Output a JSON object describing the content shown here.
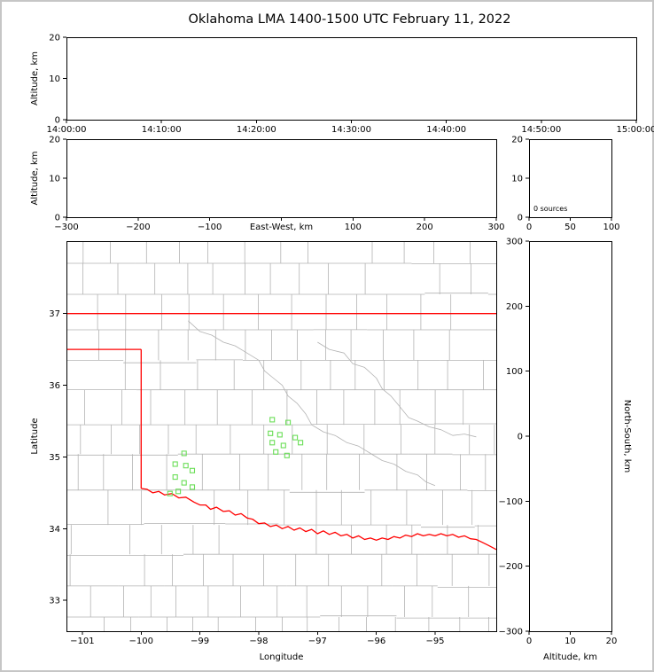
{
  "title": "Oklahoma LMA 1400-1500 UTC February 11, 2022",
  "colors": {
    "background": "#ffffff",
    "frame_border": "#c6c6c6",
    "axis": "#000000",
    "county_line": "#b3b3b3",
    "state_border": "#ff0000",
    "station_marker": "#6ade57",
    "text": "#000000"
  },
  "chart_data": {
    "type": "scatter",
    "title": "Oklahoma LMA 1400-1500 UTC February 11, 2022",
    "legend": "none",
    "grid": "off",
    "panels": {
      "time_height": {
        "description": "altitude vs time, no sources plotted",
        "ylabel": "Altitude, km",
        "ylim": [
          0,
          20
        ],
        "yticks": [
          0,
          10,
          20
        ],
        "ytick_labels": [
          "0",
          "10",
          "20"
        ],
        "xtick_labels": [
          "14:00:00",
          "14:10:00",
          "14:20:00",
          "14:30:00",
          "14:40:00",
          "14:50:00",
          "15:00:00"
        ],
        "points": []
      },
      "ew_height": {
        "description": "altitude vs east-west distance, no sources plotted",
        "xlabel": "East-West, km",
        "ylabel": "Altitude, km",
        "xlim": [
          -300,
          300
        ],
        "xticks": [
          -300,
          -200,
          -100,
          0,
          100,
          200,
          300
        ],
        "xtick_labels": [
          "−300",
          "−200",
          "−100",
          "",
          "100",
          "200",
          "300"
        ],
        "ylim": [
          0,
          20
        ],
        "yticks": [
          0,
          10,
          20
        ],
        "ytick_labels": [
          "0",
          "10",
          "20"
        ],
        "points": []
      },
      "altitude_histogram": {
        "description": "source count histogram by altitude, empty",
        "annotation": "0 sources",
        "xlim": [
          0,
          100
        ],
        "xticks": [
          0,
          50,
          100
        ],
        "xtick_labels": [
          "0",
          "50",
          "100"
        ],
        "ylim": [
          0,
          20
        ],
        "yticks": [
          0,
          10,
          20
        ],
        "ytick_labels": [
          "0",
          "10",
          "20"
        ],
        "values": []
      },
      "plan_view": {
        "description": "map of Oklahoma with county lines, red state borders, green LMA station squares",
        "xlabel": "Longitude",
        "ylabel": "Latitude",
        "xlim": [
          -101.27,
          -93.96
        ],
        "xticks": [
          -101,
          -100,
          -99,
          -98,
          -97,
          -96,
          -95
        ],
        "xtick_labels": [
          "−101",
          "−100",
          "−99",
          "−98",
          "−97",
          "−96",
          "−95"
        ],
        "ylim": [
          32.57,
          38.01
        ],
        "yticks": [
          33,
          34,
          35,
          36,
          37
        ],
        "ytick_labels": [
          "33",
          "34",
          "35",
          "36",
          "37"
        ],
        "stations": [
          [
            -99.27,
            35.05
          ],
          [
            -99.42,
            34.9
          ],
          [
            -99.24,
            34.88
          ],
          [
            -99.13,
            34.81
          ],
          [
            -99.42,
            34.72
          ],
          [
            -99.27,
            34.64
          ],
          [
            -99.13,
            34.58
          ],
          [
            -99.37,
            34.52
          ],
          [
            -99.51,
            34.49
          ],
          [
            -97.77,
            35.52
          ],
          [
            -97.5,
            35.48
          ],
          [
            -97.8,
            35.33
          ],
          [
            -97.64,
            35.31
          ],
          [
            -97.38,
            35.27
          ],
          [
            -97.77,
            35.2
          ],
          [
            -97.58,
            35.16
          ],
          [
            -97.29,
            35.2
          ],
          [
            -97.71,
            35.07
          ],
          [
            -97.52,
            35.02
          ]
        ],
        "state_border": [
          [
            [
              -101.27,
              37.0
            ],
            [
              -93.96,
              37.0
            ]
          ],
          [
            [
              -101.27,
              36.5
            ],
            [
              -100.0,
              36.5
            ]
          ],
          [
            [
              -100.0,
              36.5
            ],
            [
              -100.0,
              34.56
            ]
          ],
          [
            [
              -100.0,
              34.56
            ],
            [
              -99.9,
              34.55
            ],
            [
              -99.8,
              34.5
            ],
            [
              -99.7,
              34.52
            ],
            [
              -99.6,
              34.47
            ],
            [
              -99.48,
              34.49
            ],
            [
              -99.36,
              34.43
            ],
            [
              -99.24,
              34.44
            ],
            [
              -99.1,
              34.37
            ],
            [
              -99.0,
              34.33
            ],
            [
              -98.9,
              34.33
            ],
            [
              -98.82,
              34.27
            ],
            [
              -98.72,
              34.3
            ],
            [
              -98.6,
              34.24
            ],
            [
              -98.5,
              34.25
            ],
            [
              -98.4,
              34.19
            ],
            [
              -98.3,
              34.21
            ],
            [
              -98.2,
              34.15
            ],
            [
              -98.1,
              34.13
            ],
            [
              -98.0,
              34.07
            ],
            [
              -97.9,
              34.08
            ],
            [
              -97.8,
              34.03
            ],
            [
              -97.7,
              34.05
            ],
            [
              -97.6,
              34.0
            ],
            [
              -97.5,
              34.03
            ],
            [
              -97.4,
              33.98
            ],
            [
              -97.3,
              34.01
            ],
            [
              -97.2,
              33.96
            ],
            [
              -97.1,
              33.99
            ],
            [
              -97.0,
              33.93
            ],
            [
              -96.9,
              33.97
            ],
            [
              -96.8,
              33.92
            ],
            [
              -96.7,
              33.95
            ],
            [
              -96.6,
              33.9
            ],
            [
              -96.5,
              33.92
            ],
            [
              -96.4,
              33.87
            ],
            [
              -96.3,
              33.9
            ],
            [
              -96.2,
              33.85
            ],
            [
              -96.1,
              33.87
            ],
            [
              -96.0,
              33.84
            ],
            [
              -95.9,
              33.87
            ],
            [
              -95.8,
              33.85
            ],
            [
              -95.7,
              33.89
            ],
            [
              -95.6,
              33.87
            ],
            [
              -95.5,
              33.91
            ],
            [
              -95.4,
              33.89
            ],
            [
              -95.3,
              33.93
            ],
            [
              -95.2,
              33.9
            ],
            [
              -95.1,
              33.92
            ],
            [
              -95.0,
              33.9
            ],
            [
              -94.9,
              33.93
            ],
            [
              -94.8,
              33.9
            ],
            [
              -94.7,
              33.92
            ],
            [
              -94.6,
              33.88
            ],
            [
              -94.5,
              33.9
            ],
            [
              -94.4,
              33.86
            ],
            [
              -94.3,
              33.85
            ],
            [
              -94.2,
              33.81
            ],
            [
              -94.1,
              33.77
            ],
            [
              -93.96,
              33.71
            ]
          ]
        ],
        "rivers": [
          [
            [
              -97.0,
              36.6
            ],
            [
              -96.8,
              36.5
            ],
            [
              -96.55,
              36.45
            ],
            [
              -96.4,
              36.3
            ],
            [
              -96.2,
              36.25
            ],
            [
              -96.0,
              36.1
            ],
            [
              -95.9,
              35.95
            ],
            [
              -95.75,
              35.85
            ],
            [
              -95.6,
              35.7
            ],
            [
              -95.45,
              35.55
            ],
            [
              -95.3,
              35.5
            ],
            [
              -95.1,
              35.42
            ],
            [
              -94.9,
              35.38
            ],
            [
              -94.7,
              35.3
            ],
            [
              -94.5,
              35.32
            ],
            [
              -94.3,
              35.28
            ]
          ],
          [
            [
              -99.2,
              36.9
            ],
            [
              -99.0,
              36.75
            ],
            [
              -98.8,
              36.7
            ],
            [
              -98.6,
              36.6
            ],
            [
              -98.4,
              36.55
            ],
            [
              -98.2,
              36.45
            ],
            [
              -98.0,
              36.35
            ],
            [
              -97.9,
              36.2
            ],
            [
              -97.75,
              36.1
            ],
            [
              -97.6,
              36.0
            ],
            [
              -97.5,
              35.85
            ],
            [
              -97.35,
              35.75
            ],
            [
              -97.2,
              35.6
            ],
            [
              -97.1,
              35.45
            ],
            [
              -96.9,
              35.35
            ],
            [
              -96.7,
              35.3
            ],
            [
              -96.5,
              35.2
            ],
            [
              -96.3,
              35.15
            ],
            [
              -96.1,
              35.05
            ],
            [
              -95.9,
              34.95
            ],
            [
              -95.7,
              34.9
            ],
            [
              -95.5,
              34.8
            ],
            [
              -95.3,
              34.75
            ],
            [
              -95.15,
              34.65
            ],
            [
              -95.0,
              34.6
            ]
          ]
        ],
        "county_grid": {
          "seed": 11,
          "lat_step_min": 0.4,
          "lat_step_var": 0.12,
          "lon_step_min": 0.42,
          "lon_step_var": 0.22
        }
      },
      "ns_height": {
        "description": "north-south distance vs altitude, no sources plotted",
        "xlabel": "Altitude, km",
        "ylabel_right": "North-South, km",
        "xlim": [
          0,
          20
        ],
        "xticks": [
          0,
          10,
          20
        ],
        "xtick_labels": [
          "0",
          "10",
          "20"
        ],
        "ylim": [
          -300,
          300
        ],
        "yticks": [
          300,
          200,
          100,
          0,
          -100,
          -200,
          -300
        ],
        "ytick_labels": [
          "300",
          "200",
          "100",
          "0",
          "−100",
          "−200",
          "−300"
        ],
        "points": []
      }
    }
  }
}
